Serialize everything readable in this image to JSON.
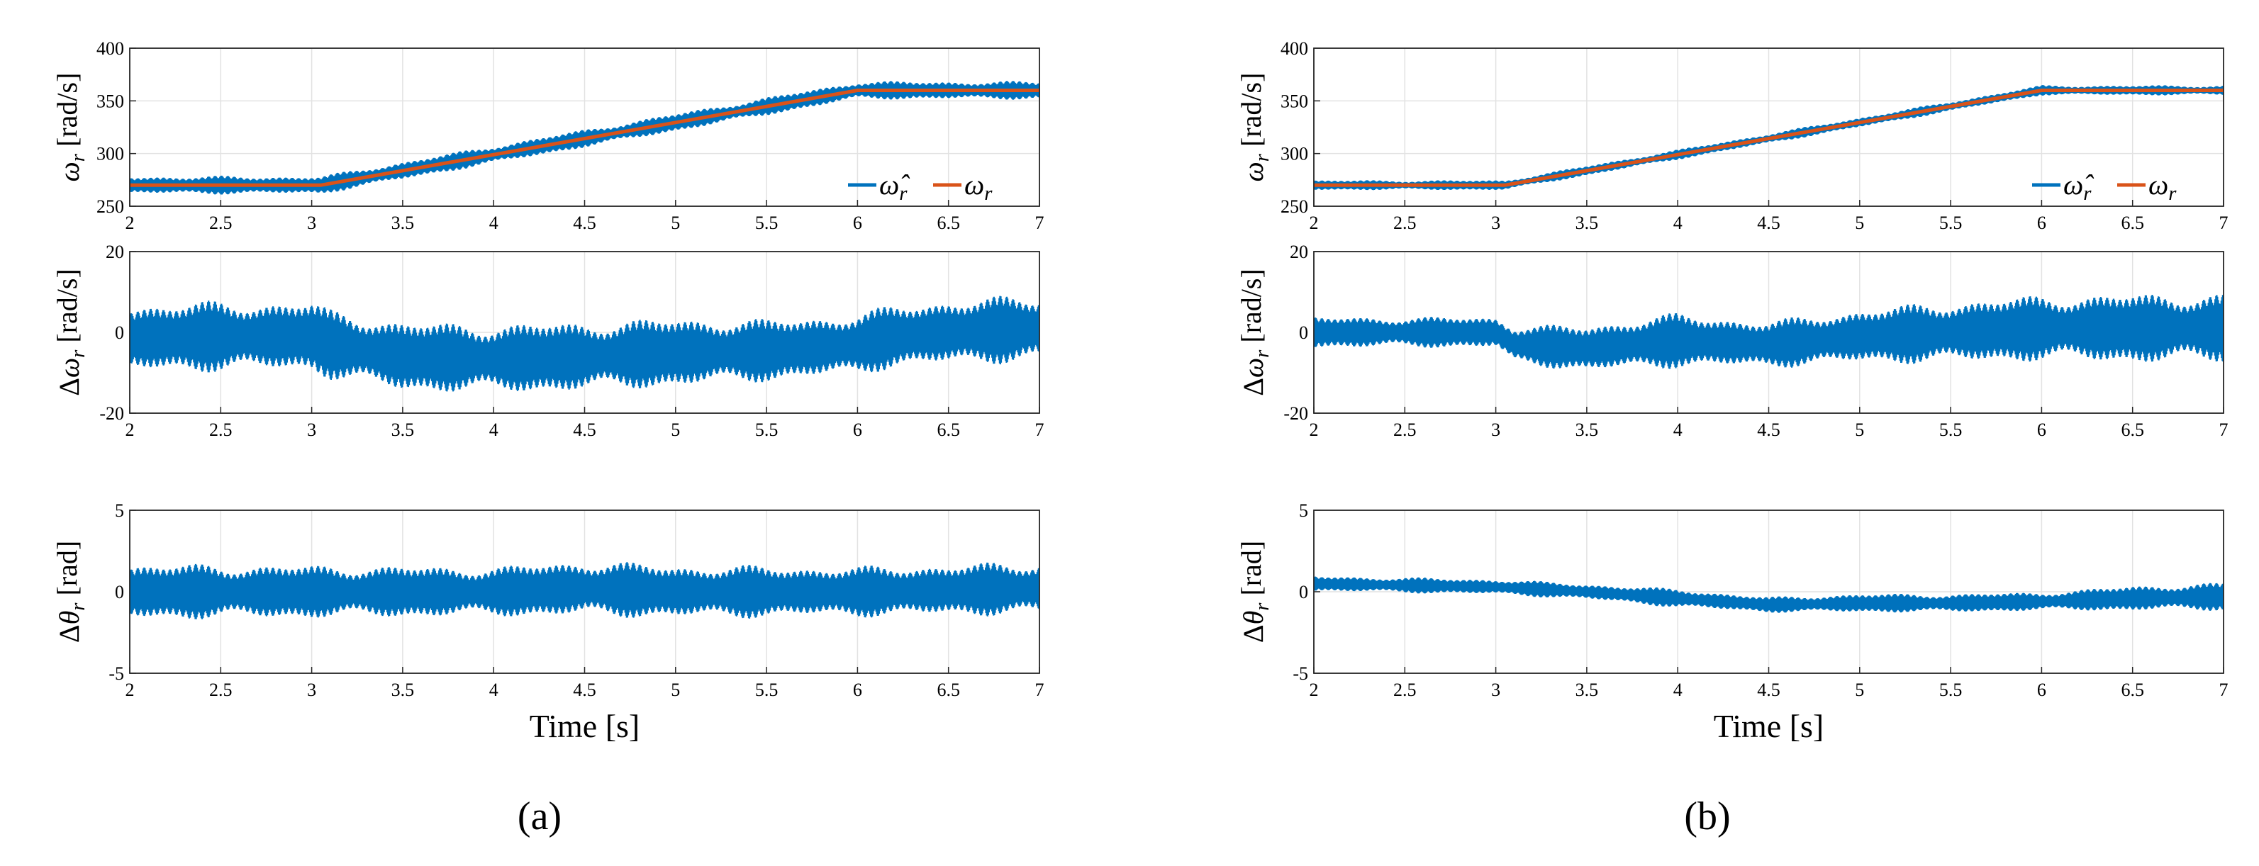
{
  "figure_labels": {
    "left": "(a)",
    "right": "(b)"
  },
  "chart_data": [
    {
      "type": "line",
      "panel": "a",
      "row": "top",
      "ylabel": "ωr [rad/s]",
      "xlabel": "",
      "xlim": [
        2,
        7
      ],
      "ylim": [
        250,
        400
      ],
      "xticks": [
        "2",
        "2.5",
        "3",
        "3.5",
        "4",
        "4.5",
        "5",
        "5.5",
        "6",
        "6.5",
        "7"
      ],
      "yticks": [
        "250",
        "300",
        "350",
        "400"
      ],
      "grid": true,
      "legend": {
        "position": "bottom-right",
        "entries": [
          "ω̂r",
          "ωr"
        ]
      },
      "series": [
        {
          "name": "ω̂r",
          "color": "#0072BD",
          "style": "band",
          "ramp_x": [
            2,
            3.05,
            6,
            7
          ],
          "ramp_y": [
            270,
            270,
            360,
            360
          ],
          "amplitude": 9
        },
        {
          "name": "ωr",
          "color": "#D95319",
          "style": "line",
          "x": [
            2,
            3.05,
            6,
            7
          ],
          "y": [
            270,
            270,
            360,
            360
          ]
        }
      ]
    },
    {
      "type": "line",
      "panel": "a",
      "row": "middle",
      "ylabel": "Δωr [rad/s]",
      "xlabel": "",
      "xlim": [
        2,
        7
      ],
      "ylim": [
        -20,
        20
      ],
      "xticks": [
        "2",
        "2.5",
        "3",
        "3.5",
        "4",
        "4.5",
        "5",
        "5.5",
        "6",
        "6.5",
        "7"
      ],
      "yticks": [
        "-20",
        "0",
        "20"
      ],
      "grid": true,
      "series": [
        {
          "name": "Δωr",
          "color": "#0072BD",
          "style": "band",
          "env_x": [
            2,
            2.5,
            3,
            3.1,
            3.5,
            4,
            4.5,
            5,
            5.5,
            6,
            6.2,
            6.5,
            7
          ],
          "env_mid": [
            -1.5,
            -1,
            -1,
            -3,
            -6,
            -6.5,
            -6,
            -5,
            -4.5,
            -3,
            -1,
            0,
            1
          ],
          "env_amp": [
            9,
            9,
            9,
            9,
            9,
            9,
            9,
            9,
            8,
            8,
            8,
            8.5,
            8.5
          ]
        }
      ]
    },
    {
      "type": "line",
      "panel": "a",
      "row": "bottom",
      "ylabel": "Δθr [rad]",
      "xlabel": "Time [s]",
      "xlim": [
        2,
        7
      ],
      "ylim": [
        -5,
        5
      ],
      "xticks": [
        "2",
        "2.5",
        "3",
        "3.5",
        "4",
        "4.5",
        "5",
        "5.5",
        "6",
        "6.5",
        "7"
      ],
      "yticks": [
        "-5",
        "0",
        "5"
      ],
      "grid": true,
      "series": [
        {
          "name": "Δθr",
          "color": "#0072BD",
          "style": "band",
          "env_x": [
            2,
            3,
            4,
            4.5,
            5,
            6,
            7
          ],
          "env_mid": [
            0,
            0,
            0,
            0.2,
            0,
            0,
            0.2
          ],
          "env_amp": [
            1.8,
            1.7,
            1.6,
            1.8,
            1.7,
            1.6,
            1.7
          ]
        }
      ]
    },
    {
      "type": "line",
      "panel": "b",
      "row": "top",
      "ylabel": "ωr [rad/s]",
      "xlabel": "",
      "xlim": [
        2,
        7
      ],
      "ylim": [
        250,
        400
      ],
      "xticks": [
        "2",
        "2.5",
        "3",
        "3.5",
        "4",
        "4.5",
        "5",
        "5.5",
        "6",
        "6.5",
        "7"
      ],
      "yticks": [
        "250",
        "300",
        "350",
        "400"
      ],
      "grid": true,
      "legend": {
        "position": "bottom-right",
        "entries": [
          "ω̂r",
          "ωr"
        ]
      },
      "series": [
        {
          "name": "ω̂r",
          "color": "#0072BD",
          "style": "band",
          "ramp_x": [
            2,
            3.05,
            6,
            7
          ],
          "ramp_y": [
            270,
            270,
            360,
            360
          ],
          "amplitude": 5
        },
        {
          "name": "ωr",
          "color": "#D95319",
          "style": "line",
          "x": [
            2,
            3.05,
            6,
            7
          ],
          "y": [
            270,
            270,
            360,
            360
          ]
        }
      ]
    },
    {
      "type": "line",
      "panel": "b",
      "row": "middle",
      "ylabel": "Δωr [rad/s]",
      "xlabel": "",
      "xlim": [
        2,
        7
      ],
      "ylim": [
        -20,
        20
      ],
      "xticks": [
        "2",
        "2.5",
        "3",
        "3.5",
        "4",
        "4.5",
        "5",
        "5.5",
        "6",
        "6.5",
        "7"
      ],
      "yticks": [
        "-20",
        "0",
        "20"
      ],
      "grid": true,
      "series": [
        {
          "name": "Δωr",
          "color": "#0072BD",
          "style": "band",
          "env_x": [
            2,
            3,
            3.1,
            3.5,
            4,
            4.5,
            5,
            5.5,
            6,
            6.5,
            7
          ],
          "env_mid": [
            0,
            0,
            -3,
            -4,
            -2,
            -3,
            -1,
            0,
            1,
            1,
            1
          ],
          "env_amp": [
            4,
            4,
            5,
            6,
            7,
            6,
            7,
            8,
            8.5,
            9,
            9
          ]
        }
      ]
    },
    {
      "type": "line",
      "panel": "b",
      "row": "bottom",
      "ylabel": "Δθr [rad]",
      "xlabel": "Time [s]",
      "xlim": [
        2,
        7
      ],
      "ylim": [
        -5,
        5
      ],
      "xticks": [
        "2",
        "2.5",
        "3",
        "3.5",
        "4",
        "4.5",
        "5",
        "5.5",
        "6",
        "6.5",
        "7"
      ],
      "yticks": [
        "-5",
        "0",
        "5"
      ],
      "grid": true,
      "series": [
        {
          "name": "Δθr",
          "color": "#0072BD",
          "style": "band",
          "env_x": [
            2,
            3,
            3.5,
            4,
            4.5,
            5,
            5.5,
            6,
            6.5,
            7
          ],
          "env_mid": [
            0.5,
            0.3,
            0,
            -0.4,
            -0.8,
            -0.7,
            -0.7,
            -0.6,
            -0.4,
            -0.3
          ],
          "env_amp": [
            0.5,
            0.5,
            0.5,
            0.6,
            0.5,
            0.6,
            0.6,
            0.6,
            0.8,
            0.9
          ]
        }
      ]
    }
  ]
}
